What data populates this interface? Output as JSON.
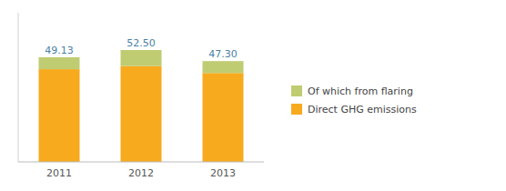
{
  "chart_data": {
    "type": "bar",
    "stacked": true,
    "categories": [
      "2011",
      "2012",
      "2013"
    ],
    "series": [
      {
        "name": "Direct GHG emissions",
        "color": "#F7AA1E",
        "values": [
          43.5,
          45.0,
          41.7
        ]
      },
      {
        "name": "Of which from flaring",
        "color": "#BFCC72",
        "values": [
          5.63,
          7.5,
          5.6
        ]
      }
    ],
    "totals": [
      49.13,
      52.5,
      47.3
    ],
    "total_labels": [
      "49.13",
      "52.50",
      "47.30"
    ],
    "ylim": [
      0,
      70
    ],
    "grid": false,
    "legend": "right",
    "tick_labels": "x"
  }
}
